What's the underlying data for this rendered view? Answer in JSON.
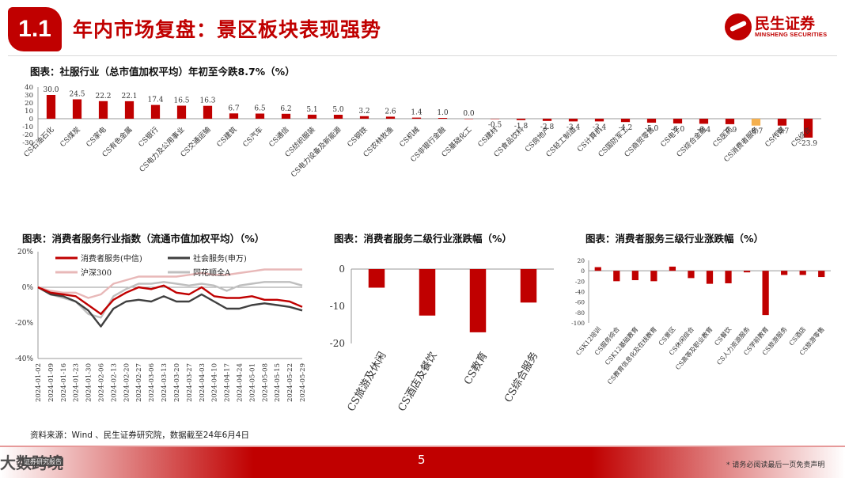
{
  "header": {
    "badge": "1.1",
    "title": "年内市场复盘：景区板块表现强势",
    "logo_cn": "民生证券",
    "logo_en": "MINSHENG SECURITIES"
  },
  "colors": {
    "brand_red": "#c00000",
    "highlight_orange": "#f4b04f",
    "dark_gray": "#404040",
    "pink": "#e8b8b8",
    "light_gray": "#bfbfbf"
  },
  "chart_titles": {
    "top": "图表：社服行业（总市值加权平均）年初至今跌8.7%（%）",
    "left": "图表：消费者服务行业指数（流通市值加权平均）（%）",
    "mid": "图表：消费者服务二级行业涨跌幅（%）",
    "right": "图表：消费者服务三级行业涨跌幅（%）"
  },
  "chart_data": [
    {
      "type": "bar",
      "title": "图表：社服行业（总市值加权平均）年初至今跌8.7%（%）",
      "categories": [
        "CS石油石化",
        "CS煤炭",
        "CS家电",
        "CS有色金属",
        "CS银行",
        "CS电力及公用事业",
        "CS交通运输",
        "CS建筑",
        "CS汽车",
        "CS通信",
        "CS纺织服装",
        "CS电力设备及新能源",
        "CS钢铁",
        "CS农林牧渔",
        "CS机械",
        "CS非银行金融",
        "CS基础化工",
        "CS建材",
        "CS食品饮料",
        "CS房地产",
        "CS轻工制造",
        "CS计算机",
        "CS国防军工",
        "CS商贸零售",
        "CS电子",
        "CS综合金融",
        "CS医药",
        "CS消费者服务",
        "CS传媒",
        "CS综合"
      ],
      "values": [
        30.0,
        24.5,
        22.2,
        22.1,
        17.4,
        16.5,
        16.3,
        6.7,
        6.5,
        6.2,
        5.1,
        5.0,
        3.2,
        2.6,
        1.4,
        1.0,
        0.0,
        -0.5,
        -1.8,
        -2.8,
        -3.4,
        -3.4,
        -4.2,
        -5.0,
        -6.0,
        -6.4,
        -6.9,
        -8.7,
        -8.7,
        -23.9
      ],
      "value_labels": [
        "30.0",
        "24.5",
        "22.2",
        "22.1",
        "17.4",
        "16.5",
        "16.3",
        "6.7",
        "6.5",
        "6.2",
        "5.1",
        "5.0",
        "3.2",
        "2.6",
        "1.4",
        "1.0",
        "0.0",
        "-0.5",
        "-1.8",
        "-2.8",
        "-3.4",
        "-3.4",
        "-4.2",
        "-5.0",
        "-6.0",
        "-6.4",
        "-6.9",
        "-8.7",
        "-8.7",
        "-23.9"
      ],
      "highlight_index": 27,
      "ylim": [
        -30,
        40
      ],
      "yticks": [
        "40",
        "30",
        "20",
        "10",
        "0",
        "-10",
        "-20",
        "-30"
      ]
    },
    {
      "type": "line",
      "title": "图表：消费者服务行业指数（流通市值加权平均）（%）",
      "x": [
        "2024-01-02",
        "2024-01-09",
        "2024-01-16",
        "2024-01-23",
        "2024-01-30",
        "2024-02-06",
        "2024-02-13",
        "2024-02-20",
        "2024-02-27",
        "2024-03-06",
        "2024-03-13",
        "2024-03-20",
        "2024-03-27",
        "2024-04-03",
        "2024-04-10",
        "2024-04-17",
        "2024-04-24",
        "2024-05-01",
        "2024-05-08",
        "2024-05-15",
        "2024-05-22",
        "2024-05-29"
      ],
      "yticks": [
        "20%",
        "0%",
        "-20%",
        "-40%"
      ],
      "ylim": [
        -40,
        20
      ],
      "series": [
        {
          "name": "消费者服务(中信)",
          "color": "#c00000",
          "values": [
            0,
            -3,
            -4,
            -5,
            -10,
            -15,
            -7,
            -3,
            0,
            -1,
            1,
            -3,
            -4,
            0,
            -5,
            -6,
            -6,
            -5,
            -7,
            -7,
            -8,
            -11
          ]
        },
        {
          "name": "社会服务(申万)",
          "color": "#404040",
          "values": [
            0,
            -4,
            -5,
            -8,
            -13,
            -22,
            -12,
            -8,
            -7,
            -8,
            -5,
            -8,
            -8,
            -4,
            -8,
            -12,
            -12,
            -10,
            -9,
            -10,
            -11,
            -13
          ]
        },
        {
          "name": "沪深300",
          "color": "#e8b8b8",
          "values": [
            0,
            -2,
            -3,
            -3,
            -6,
            -4,
            2,
            4,
            6,
            6,
            6,
            6,
            7,
            8,
            7,
            7,
            8,
            9,
            10,
            10,
            10,
            10
          ]
        },
        {
          "name": "同花顺全A",
          "color": "#bfbfbf",
          "values": [
            0,
            -4,
            -6,
            -8,
            -15,
            -17,
            -5,
            -1,
            2,
            2,
            3,
            2,
            1,
            2,
            1,
            -2,
            1,
            2,
            3,
            3,
            3,
            1
          ]
        }
      ]
    },
    {
      "type": "bar",
      "title": "图表：消费者服务二级行业涨跌幅（%）",
      "categories": [
        "CS旅游及休闲",
        "CS酒店及餐饮",
        "CS教育",
        "CS综合服务"
      ],
      "values": [
        -5,
        -12.5,
        -17,
        -9
      ],
      "ylim": [
        -20,
        0
      ],
      "yticks": [
        "0",
        "-10",
        "-20"
      ]
    },
    {
      "type": "bar",
      "title": "图表：消费者服务三级行业涨跌幅（%）",
      "categories": [
        "CSK12培训",
        "CS服务综合",
        "CSK12基础教育",
        "CS教育信息化及在线教育",
        "CS景区",
        "CS休闲综合",
        "CS高等及职业教育",
        "CS餐饮",
        "CS人力资源服务",
        "CS学前教育",
        "CS旅游服务",
        "CS酒店",
        "CS旅游零售"
      ],
      "values": [
        7,
        -20,
        -18,
        -20,
        8,
        -14,
        -25,
        -24,
        -3,
        -85,
        -8,
        -8,
        -12
      ],
      "ylim": [
        -100,
        20
      ],
      "yticks": [
        "20",
        "0",
        "-20",
        "-40",
        "-60",
        "-80",
        "-100"
      ]
    }
  ],
  "footer": {
    "source": "资料来源：Wind 、民生证券研究院，数据截至24年6月4日",
    "page_number": "5",
    "disclaimer": "* 请务必阅读最后一页免责声明",
    "watermark": "大数跨境",
    "watermark_tag": "证券研究报告"
  }
}
